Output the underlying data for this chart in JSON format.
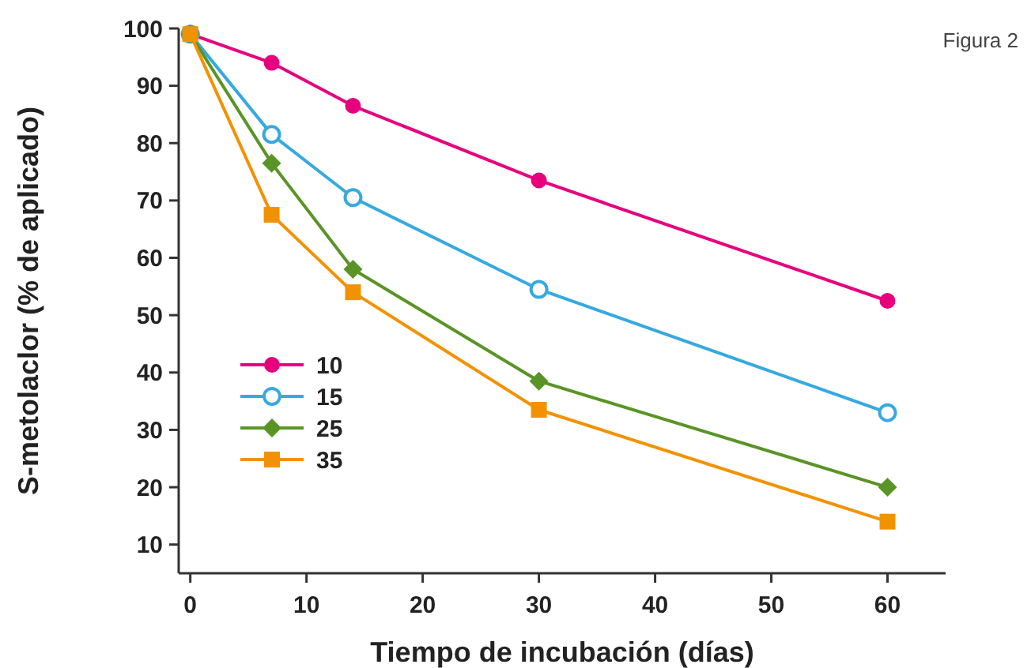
{
  "chart_data": {
    "type": "line",
    "xlabel": "Tiempo de incubación (días)",
    "ylabel": "S-metolaclor (% de aplicado)",
    "annotations": [
      "Figura 2"
    ],
    "x": [
      0,
      7,
      14,
      30,
      60
    ],
    "series": [
      {
        "name": "10",
        "color": "#e6007e",
        "marker": "circle",
        "values": [
          99,
          94,
          86.5,
          73.5,
          52.5
        ]
      },
      {
        "name": "15",
        "color": "#36a9e1",
        "marker": "circle-open",
        "values": [
          99,
          81.5,
          70.5,
          54.5,
          33
        ]
      },
      {
        "name": "25",
        "color": "#5a9427",
        "marker": "diamond",
        "values": [
          99,
          76.5,
          58,
          38.5,
          20
        ]
      },
      {
        "name": "35",
        "color": "#f39200",
        "marker": "square",
        "values": [
          99,
          67.5,
          54,
          33.5,
          14
        ]
      }
    ],
    "xlim": [
      -1,
      65
    ],
    "xticks": [
      0,
      10,
      20,
      30,
      40,
      50,
      60
    ],
    "ylim": [
      5,
      100
    ],
    "yticks": [
      10,
      20,
      30,
      40,
      50,
      60,
      70,
      80,
      90,
      100
    ],
    "legend": "left",
    "grid": false,
    "line_style": "solid"
  }
}
